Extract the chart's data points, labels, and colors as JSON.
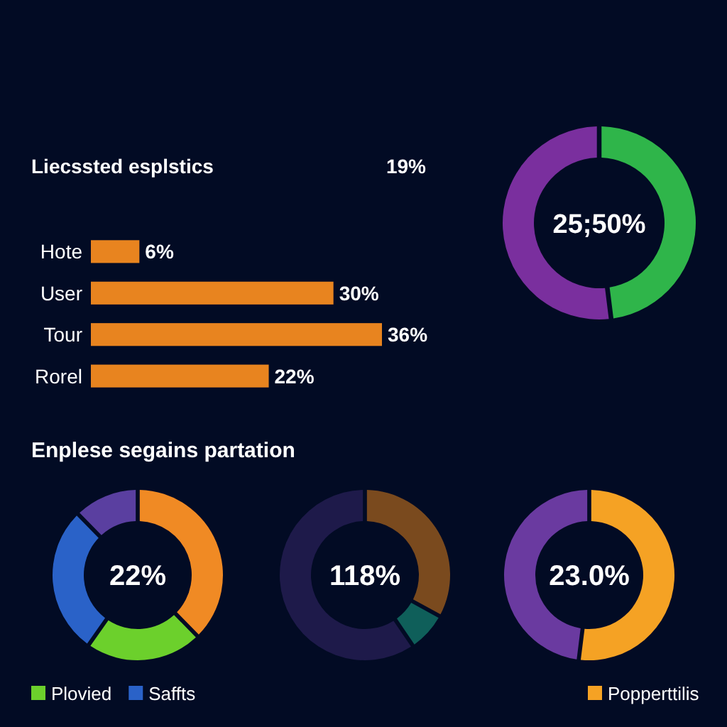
{
  "chart_data": [
    {
      "type": "bar",
      "orientation": "horizontal",
      "title": "Liecssted esplstics",
      "annotations": [
        "19%"
      ],
      "categories": [
        "Hote",
        "User",
        "Tour",
        "Rorel"
      ],
      "values": [
        6,
        30,
        36,
        22
      ],
      "value_labels": [
        "6%",
        "30%",
        "36%",
        "22%"
      ],
      "colors": [
        "#e8841f",
        "#e8841f",
        "#e8841f",
        "#e8841f"
      ]
    },
    {
      "type": "donut",
      "annotations": [
        "25;50%"
      ],
      "categories": [
        null,
        null
      ],
      "values": [
        48,
        52
      ],
      "colors": [
        "#2fb54a",
        "#7a2f9e"
      ]
    },
    {
      "type": "donut",
      "title": "Enplese segains partation",
      "annotations": [
        "22%"
      ],
      "categories": [
        null,
        "Plovied",
        "Saffts",
        null
      ],
      "values": [
        38,
        22,
        28,
        12
      ],
      "colors": [
        "#f08a24",
        "#6cd02c",
        "#2a62c8",
        "#5a3fa0"
      ],
      "legend": "bottom"
    },
    {
      "type": "donut",
      "annotations": [
        "118%"
      ],
      "categories": [
        null,
        null,
        null
      ],
      "values": [
        33,
        7,
        60
      ],
      "colors": [
        "#7a4a1e",
        "#0f5f5a",
        "#1e1a4a"
      ]
    },
    {
      "type": "donut",
      "annotations": [
        "23.0%"
      ],
      "categories": [
        "Popperttilis",
        null
      ],
      "values": [
        52,
        48
      ],
      "colors": [
        "#f5a224",
        "#6a3aa0"
      ],
      "legend": "bottom"
    }
  ]
}
